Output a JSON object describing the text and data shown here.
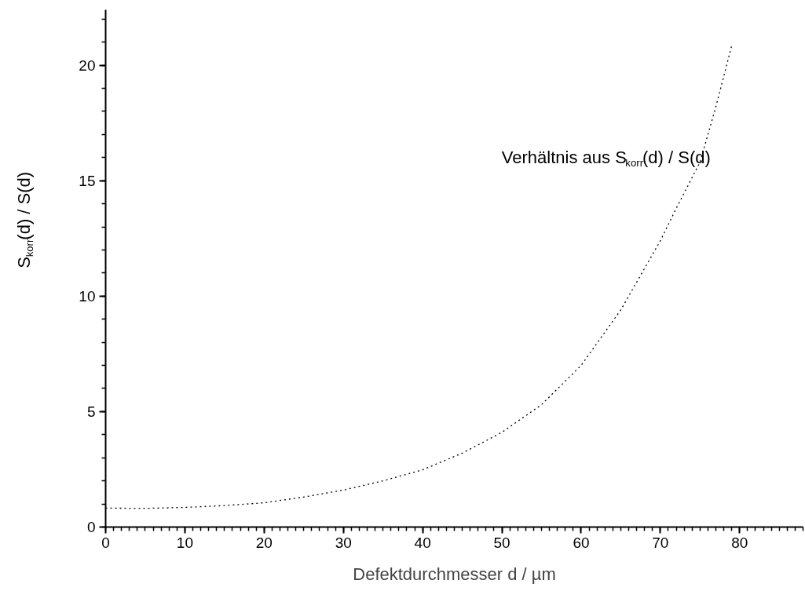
{
  "chart_data": {
    "type": "line",
    "xlabel": "Defektdurchmesser d / µm",
    "ylabel": "S$_{korr}$(d) / S(d)",
    "xlim": [
      0,
      88
    ],
    "ylim": [
      0,
      22.4
    ],
    "xticks": [
      0,
      10,
      20,
      30,
      40,
      50,
      60,
      70,
      80
    ],
    "yticks": [
      0,
      5,
      10,
      15,
      20
    ],
    "grid": false,
    "marker": "none",
    "line_style": "dotted",
    "x": [
      0,
      5,
      10,
      15,
      20,
      25,
      30,
      35,
      40,
      45,
      50,
      55,
      60,
      65,
      70,
      72,
      75,
      77,
      79
    ],
    "series": [
      {
        "color": "#000000",
        "values": [
          0.82,
          0.81,
          0.85,
          0.93,
          1.05,
          1.3,
          1.6,
          2.0,
          2.48,
          3.2,
          4.1,
          5.3,
          7.0,
          9.4,
          12.4,
          13.8,
          15.8,
          18.2,
          20.85
        ]
      }
    ],
    "annotations": [
      "Verhältnis aus S$_{korr}$(d) / S(d)"
    ]
  }
}
